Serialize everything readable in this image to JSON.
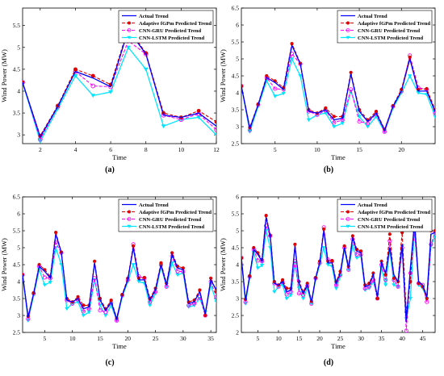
{
  "panel_labels": [
    "(a)",
    "(b)",
    "(c)",
    "(d)"
  ],
  "colors": {
    "actual": "#0000ff",
    "adaptive": "#dd0000",
    "gru": "#ff00ff",
    "lstm": "#00e5ff"
  },
  "chart_data": [
    {
      "type": "line",
      "title": "",
      "xlabel": "Time",
      "ylabel": "Wind Power (MW)",
      "xlim": [
        1,
        12
      ],
      "ylim": [
        2.8,
        5.9
      ],
      "xticks": [
        2,
        4,
        6,
        8,
        10,
        12
      ],
      "yticks": [
        3,
        3.5,
        4,
        4.5,
        5,
        5.5
      ],
      "legend": "top-right",
      "grid": false,
      "x": [
        1,
        2,
        3,
        4,
        5,
        6,
        7,
        8,
        9,
        10,
        11,
        12
      ],
      "series": [
        {
          "name": "Actual Trend",
          "key": "actual",
          "values": [
            4.2,
            2.95,
            3.65,
            4.45,
            4.3,
            4.1,
            5.4,
            4.85,
            3.45,
            3.4,
            3.5,
            3.2
          ]
        },
        {
          "name": "Adaptive fGPm Predicted Trend",
          "key": "adaptive",
          "values": [
            4.2,
            2.98,
            3.67,
            4.5,
            4.35,
            4.15,
            5.45,
            4.87,
            3.5,
            3.4,
            3.55,
            3.3
          ]
        },
        {
          "name": "CNN-GRU Predicted Trend",
          "key": "gru",
          "values": [
            4.2,
            2.9,
            3.65,
            4.45,
            4.12,
            4.1,
            5.15,
            4.85,
            3.45,
            3.35,
            3.48,
            3.12
          ]
        },
        {
          "name": "CNN-LSTM Predicted Trend",
          "key": "lstm",
          "values": [
            4.2,
            2.85,
            3.6,
            4.35,
            3.9,
            3.98,
            5.0,
            4.5,
            3.2,
            3.35,
            3.4,
            3.0
          ]
        }
      ]
    },
    {
      "type": "line",
      "title": "",
      "xlabel": "Time",
      "ylabel": "Wind Power (MW)",
      "xlim": [
        1,
        24
      ],
      "ylim": [
        2.5,
        6.5
      ],
      "xticks": [
        5,
        10,
        15,
        20
      ],
      "yticks": [
        2.5,
        3,
        3.5,
        4,
        4.5,
        5,
        5.5,
        6,
        6.5
      ],
      "legend": "top-right",
      "grid": false,
      "x": [
        1,
        2,
        3,
        4,
        5,
        6,
        7,
        8,
        9,
        10,
        11,
        12,
        13,
        14,
        15,
        16,
        17,
        18,
        19,
        20,
        21,
        22,
        23,
        24
      ],
      "series": [
        {
          "name": "Actual Trend",
          "key": "actual",
          "values": [
            4.2,
            2.95,
            3.65,
            4.45,
            4.3,
            4.1,
            5.4,
            4.85,
            3.45,
            3.4,
            3.5,
            3.2,
            3.25,
            4.55,
            3.45,
            3.15,
            3.4,
            2.9,
            3.6,
            4.05,
            5.0,
            4.05,
            4.05,
            3.45
          ]
        },
        {
          "name": "Adaptive fGPm Predicted Trend",
          "key": "adaptive",
          "values": [
            4.2,
            2.98,
            3.67,
            4.5,
            4.35,
            4.15,
            5.45,
            4.87,
            3.5,
            3.4,
            3.55,
            3.3,
            3.3,
            4.6,
            3.5,
            3.2,
            3.45,
            2.92,
            3.62,
            4.1,
            5.05,
            4.1,
            4.12,
            3.5
          ]
        },
        {
          "name": "CNN-GRU Predicted Trend",
          "key": "gru",
          "values": [
            4.2,
            2.9,
            3.65,
            4.45,
            4.12,
            4.1,
            5.15,
            4.85,
            3.45,
            3.35,
            3.48,
            3.12,
            3.2,
            4.1,
            3.15,
            3.1,
            3.38,
            2.85,
            3.6,
            4.05,
            5.1,
            4.15,
            4.1,
            3.4
          ]
        },
        {
          "name": "CNN-LSTM Predicted Trend",
          "key": "lstm",
          "values": [
            4.2,
            2.85,
            3.6,
            4.35,
            3.9,
            3.98,
            5.0,
            4.5,
            3.2,
            3.35,
            3.4,
            3.0,
            3.1,
            4.05,
            3.3,
            3.0,
            3.3,
            2.85,
            3.55,
            4.0,
            4.5,
            4.0,
            3.95,
            3.3
          ]
        }
      ]
    },
    {
      "type": "line",
      "title": "",
      "xlabel": "Time",
      "ylabel": "Wind Power (MW)",
      "xlim": [
        1,
        36
      ],
      "ylim": [
        2.5,
        6.5
      ],
      "xticks": [
        5,
        10,
        15,
        20,
        25,
        30,
        35
      ],
      "yticks": [
        2.5,
        3,
        3.5,
        4,
        4.5,
        5,
        5.5,
        6,
        6.5
      ],
      "legend": "top-right",
      "grid": false,
      "x": [
        1,
        2,
        3,
        4,
        5,
        6,
        7,
        8,
        9,
        10,
        11,
        12,
        13,
        14,
        15,
        16,
        17,
        18,
        19,
        20,
        21,
        22,
        23,
        24,
        25,
        26,
        27,
        28,
        29,
        30,
        31,
        32,
        33,
        34,
        35,
        36
      ],
      "series": [
        {
          "name": "Actual Trend",
          "key": "actual",
          "values": [
            4.2,
            2.95,
            3.65,
            4.45,
            4.3,
            4.1,
            5.4,
            4.85,
            3.45,
            3.4,
            3.5,
            3.2,
            3.25,
            4.55,
            3.45,
            3.15,
            3.4,
            2.9,
            3.6,
            4.05,
            5.0,
            4.05,
            4.05,
            3.45,
            3.75,
            4.5,
            3.9,
            4.8,
            4.4,
            4.35,
            3.35,
            3.4,
            3.7,
            3.05,
            4.05,
            3.75
          ]
        },
        {
          "name": "Adaptive fGPm Predicted Trend",
          "key": "adaptive",
          "values": [
            4.2,
            2.98,
            3.67,
            4.5,
            4.35,
            4.15,
            5.45,
            4.87,
            3.5,
            3.4,
            3.55,
            3.3,
            3.3,
            4.6,
            3.5,
            3.2,
            3.45,
            2.92,
            3.62,
            4.1,
            5.05,
            4.1,
            4.12,
            3.5,
            3.8,
            4.55,
            3.95,
            4.85,
            4.45,
            4.4,
            3.4,
            3.45,
            3.75,
            3.0,
            4.1,
            3.7
          ]
        },
        {
          "name": "CNN-GRU Predicted Trend",
          "key": "gru",
          "values": [
            4.2,
            2.9,
            3.65,
            4.45,
            4.12,
            4.1,
            5.15,
            4.85,
            3.45,
            3.35,
            3.48,
            3.12,
            3.2,
            4.1,
            3.15,
            3.1,
            3.38,
            2.85,
            3.6,
            4.05,
            5.1,
            4.15,
            4.1,
            3.4,
            3.7,
            4.5,
            3.85,
            4.75,
            4.3,
            4.3,
            3.3,
            3.35,
            3.55,
            3.0,
            4.0,
            3.55
          ]
        },
        {
          "name": "CNN-LSTM Predicted Trend",
          "key": "lstm",
          "values": [
            4.2,
            2.85,
            3.6,
            4.35,
            3.9,
            3.98,
            5.0,
            4.5,
            3.2,
            3.35,
            3.4,
            3.0,
            3.1,
            4.05,
            3.3,
            3.0,
            3.3,
            2.85,
            3.55,
            4.0,
            4.5,
            4.0,
            3.95,
            3.3,
            3.65,
            4.45,
            3.85,
            4.55,
            4.2,
            4.25,
            3.25,
            3.3,
            3.5,
            3.1,
            3.9,
            3.4
          ]
        }
      ]
    },
    {
      "type": "line",
      "title": "",
      "xlabel": "Time",
      "ylabel": "Wind Power (MW)",
      "xlim": [
        1,
        48
      ],
      "ylim": [
        2,
        6
      ],
      "xticks": [
        5,
        10,
        15,
        20,
        25,
        30,
        35,
        40,
        45
      ],
      "yticks": [
        2,
        2.5,
        3,
        3.5,
        4,
        4.5,
        5,
        5.5,
        6
      ],
      "legend": "top-right",
      "grid": false,
      "x": [
        1,
        2,
        3,
        4,
        5,
        6,
        7,
        8,
        9,
        10,
        11,
        12,
        13,
        14,
        15,
        16,
        17,
        18,
        19,
        20,
        21,
        22,
        23,
        24,
        25,
        26,
        27,
        28,
        29,
        30,
        31,
        32,
        33,
        34,
        35,
        36,
        37,
        38,
        39,
        40,
        41,
        42,
        43,
        44,
        45,
        46,
        47,
        48
      ],
      "series": [
        {
          "name": "Actual Trend",
          "key": "actual",
          "values": [
            4.2,
            2.95,
            3.65,
            4.45,
            4.3,
            4.1,
            5.4,
            4.85,
            3.45,
            3.4,
            3.5,
            3.2,
            3.25,
            4.55,
            3.45,
            3.15,
            3.4,
            2.9,
            3.6,
            4.05,
            5.0,
            4.05,
            4.05,
            3.45,
            3.75,
            4.5,
            3.9,
            4.8,
            4.4,
            4.35,
            3.35,
            3.4,
            3.7,
            3.05,
            4.05,
            3.75,
            4.5,
            3.7,
            3.5,
            4.6,
            2.3,
            3.9,
            5.25,
            3.5,
            3.4,
            3.05,
            4.9,
            4.95
          ]
        },
        {
          "name": "Adaptive fGPm Predicted Trend",
          "key": "adaptive",
          "values": [
            4.2,
            2.98,
            3.67,
            4.5,
            4.35,
            4.15,
            5.45,
            4.87,
            3.5,
            3.4,
            3.55,
            3.3,
            3.3,
            4.6,
            3.5,
            3.2,
            3.45,
            2.92,
            3.62,
            4.1,
            5.05,
            4.1,
            4.12,
            3.5,
            3.8,
            4.55,
            3.95,
            4.85,
            4.45,
            4.4,
            3.4,
            3.45,
            3.75,
            3.0,
            4.1,
            3.7,
            4.9,
            3.6,
            3.5,
            4.95,
            2.6,
            3.5,
            5.4,
            3.45,
            3.35,
            3.0,
            5.0,
            5.0
          ]
        },
        {
          "name": "CNN-GRU Predicted Trend",
          "key": "gru",
          "values": [
            4.2,
            2.9,
            3.65,
            4.45,
            4.12,
            4.1,
            5.15,
            4.85,
            3.45,
            3.35,
            3.48,
            3.12,
            3.2,
            4.1,
            3.15,
            3.1,
            3.38,
            2.85,
            3.6,
            4.05,
            5.1,
            4.15,
            4.1,
            3.4,
            3.7,
            4.5,
            3.85,
            4.75,
            4.3,
            4.3,
            3.3,
            3.35,
            3.55,
            3.0,
            4.0,
            3.55,
            4.7,
            3.55,
            3.35,
            4.5,
            2.05,
            3.75,
            5.0,
            3.45,
            3.4,
            2.9,
            4.6,
            4.95
          ]
        },
        {
          "name": "CNN-LSTM Predicted Trend",
          "key": "lstm",
          "values": [
            4.2,
            2.85,
            3.6,
            4.35,
            3.9,
            3.98,
            5.0,
            4.5,
            3.2,
            3.35,
            3.4,
            3.0,
            3.1,
            4.05,
            3.3,
            3.0,
            3.3,
            2.85,
            3.55,
            4.0,
            4.5,
            4.0,
            3.95,
            3.3,
            3.65,
            4.45,
            3.85,
            4.55,
            4.2,
            4.25,
            3.25,
            3.3,
            3.5,
            3.1,
            3.9,
            3.4,
            4.45,
            3.4,
            3.35,
            4.55,
            2.4,
            3.0,
            5.05,
            3.4,
            3.3,
            3.0,
            4.55,
            4.85
          ]
        }
      ]
    }
  ]
}
